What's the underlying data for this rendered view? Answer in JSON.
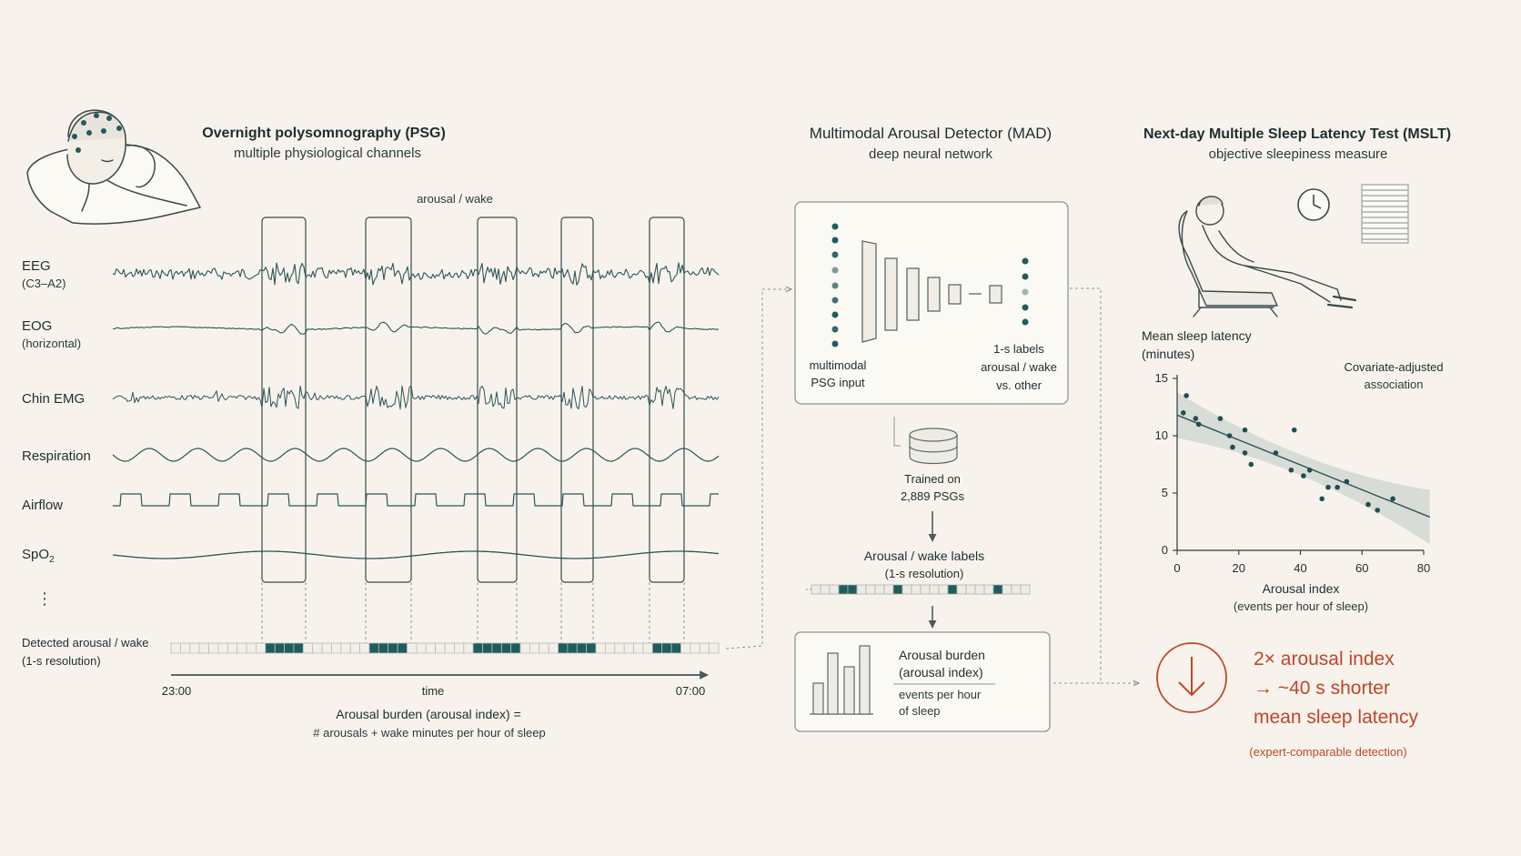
{
  "colors": {
    "background": "#f7f3ec",
    "signal": "#2b5558",
    "ink": "#1e2d30",
    "muted": "#6f7a7a",
    "box": "#8c9696",
    "teal_dark": "#1f5c5c",
    "accent": "#c0462b"
  },
  "psg": {
    "title": "Overnight polysomnography (PSG)",
    "subtitle": "multiple physiological channels",
    "arousal_label": "arousal / wake",
    "channels": [
      {
        "name": "EEG",
        "detail": "(C3–A2)"
      },
      {
        "name": "EOG",
        "detail": "(horizontal)"
      },
      {
        "name": "Chin EMG",
        "detail": ""
      },
      {
        "name": "Respiration",
        "detail": ""
      },
      {
        "name": "Airflow",
        "detail": ""
      },
      {
        "name": "SpO",
        "sub": "2",
        "detail": ""
      }
    ],
    "ellipsis": "⋮",
    "detected_label_1": "Detected arousal / wake",
    "detected_label_2": "(1-s resolution)",
    "time_start": "23:00",
    "time_label": "time",
    "time_end": "07:00",
    "burden_line_1": "Arousal burden (arousal index) =",
    "burden_line_2": "# arousals + wake minutes per hour of sleep"
  },
  "mad": {
    "title": "Multimodal Arousal Detector (MAD)",
    "subtitle": "deep neural network",
    "input_label_1": "multimodal",
    "input_label_2": "PSG input",
    "output_label_1": "1-s labels",
    "output_label_2": "arousal / wake",
    "output_label_3": "vs. other",
    "trained_1": "Trained on",
    "trained_2": "2,889 PSGs",
    "labels_title": "Arousal / wake labels",
    "labels_sub": "(1-s resolution)",
    "burden_title_1": "Arousal burden",
    "burden_title_2": "(arousal index)",
    "burden_desc_1": "events per hour",
    "burden_desc_2": "of sleep"
  },
  "mslt": {
    "title": "Next-day Multiple Sleep Latency Test (MSLT)",
    "subtitle": "objective sleepiness measure",
    "result_line_1": "2× arousal index",
    "result_line_2": "→ ~40 s shorter",
    "result_line_3": "mean sleep latency",
    "result_note": "(expert-comparable detection)",
    "down_arrow": "↓"
  },
  "chart_data": {
    "type": "scatter",
    "ylabel": "Mean sleep latency",
    "ylabel_unit": "(minutes)",
    "xlabel": "Arousal index",
    "xlabel_unit": "(events per hour of sleep)",
    "annotation_1": "Covariate-adjusted",
    "annotation_2": "association",
    "xlim": [
      0,
      80
    ],
    "ylim": [
      0,
      15
    ],
    "xticks": [
      0,
      20,
      40,
      60,
      80
    ],
    "yticks": [
      0,
      5,
      10,
      15
    ],
    "points": [
      {
        "x": 3,
        "y": 13.5
      },
      {
        "x": 2,
        "y": 12
      },
      {
        "x": 6,
        "y": 11.5
      },
      {
        "x": 7,
        "y": 11
      },
      {
        "x": 14,
        "y": 11.5
      },
      {
        "x": 17,
        "y": 10
      },
      {
        "x": 18,
        "y": 9
      },
      {
        "x": 22,
        "y": 10.5
      },
      {
        "x": 22,
        "y": 8.5
      },
      {
        "x": 24,
        "y": 7.5
      },
      {
        "x": 32,
        "y": 8.5
      },
      {
        "x": 37,
        "y": 7
      },
      {
        "x": 38,
        "y": 10.5
      },
      {
        "x": 41,
        "y": 6.5
      },
      {
        "x": 43,
        "y": 7
      },
      {
        "x": 47,
        "y": 4.5
      },
      {
        "x": 49,
        "y": 5.5
      },
      {
        "x": 52,
        "y": 5.5
      },
      {
        "x": 55,
        "y": 6
      },
      {
        "x": 62,
        "y": 4
      },
      {
        "x": 65,
        "y": 3.5
      },
      {
        "x": 70,
        "y": 4.5
      }
    ],
    "trend": {
      "x0": 0,
      "y0": 11.8,
      "x1": 82,
      "y1": 2.9
    }
  }
}
